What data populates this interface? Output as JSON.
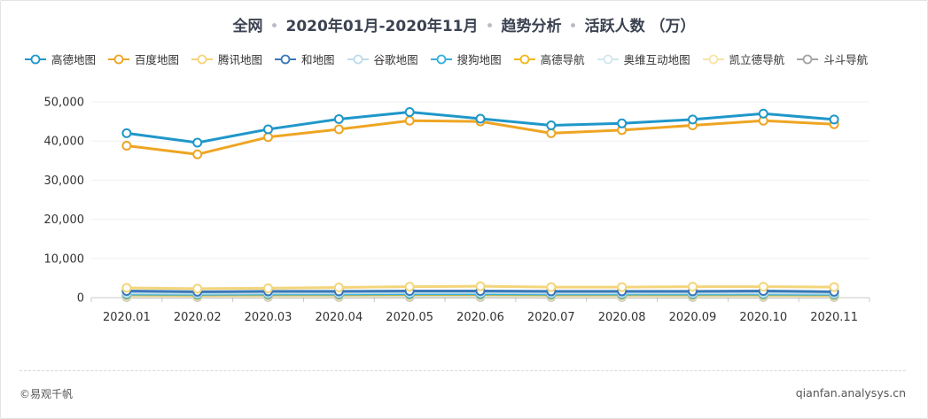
{
  "header": {
    "scope": "全网",
    "period": "2020年01月-2020年11月",
    "analysis": "趋势分析",
    "metric": "活跃人数 （万）"
  },
  "footer": {
    "copyright": "©易观千帆",
    "site": "qianfan.analysys.cn"
  },
  "chart_data": {
    "type": "line",
    "categories": [
      "2020.01",
      "2020.02",
      "2020.03",
      "2020.04",
      "2020.05",
      "2020.06",
      "2020.07",
      "2020.08",
      "2020.09",
      "2020.10",
      "2020.11"
    ],
    "ylim": [
      0,
      50000
    ],
    "yticks": [
      0,
      10000,
      20000,
      30000,
      40000,
      50000
    ],
    "ytick_labels": [
      "0",
      "10,000",
      "20,000",
      "30,000",
      "40,000",
      "50,000"
    ],
    "grid": true,
    "legend_position": "top",
    "series": [
      {
        "name": "高德地图",
        "color": "#1f97c9",
        "values": [
          42000,
          39600,
          43000,
          45600,
          47400,
          45700,
          44000,
          44500,
          45500,
          47000,
          45500
        ]
      },
      {
        "name": "百度地图",
        "color": "#eea523",
        "values": [
          38800,
          36600,
          41000,
          43000,
          45200,
          45000,
          42000,
          42800,
          44000,
          45200,
          44300
        ]
      },
      {
        "name": "腾讯地图",
        "color": "#f4d57b",
        "values": [
          2500,
          2300,
          2400,
          2600,
          2800,
          2900,
          2700,
          2700,
          2800,
          2800,
          2700
        ]
      },
      {
        "name": "和地图",
        "color": "#3a78b8",
        "values": [
          1700,
          1500,
          1600,
          1600,
          1700,
          1700,
          1600,
          1600,
          1600,
          1700,
          1500
        ]
      },
      {
        "name": "谷歌地图",
        "color": "#bcdcea",
        "values": [
          1200,
          1100,
          1200,
          1200,
          1300,
          1300,
          1200,
          1200,
          1200,
          1200,
          1100
        ]
      },
      {
        "name": "搜狗地图",
        "color": "#35b0df",
        "values": [
          900,
          850,
          900,
          900,
          950,
          950,
          900,
          900,
          900,
          900,
          850
        ]
      },
      {
        "name": "高德导航",
        "color": "#f0b81c",
        "values": [
          700,
          650,
          700,
          700,
          750,
          750,
          700,
          700,
          700,
          700,
          650
        ]
      },
      {
        "name": "奥维互动地图",
        "color": "#d2e6f0",
        "values": [
          500,
          480,
          500,
          500,
          520,
          520,
          500,
          500,
          500,
          500,
          480
        ]
      },
      {
        "name": "凯立德导航",
        "color": "#f9e4a8",
        "values": [
          350,
          330,
          350,
          350,
          360,
          360,
          350,
          350,
          350,
          350,
          330
        ]
      },
      {
        "name": "斗斗导航",
        "color": "#a4a4a4",
        "values": [
          200,
          190,
          200,
          200,
          210,
          210,
          200,
          200,
          200,
          200,
          190
        ]
      }
    ]
  }
}
